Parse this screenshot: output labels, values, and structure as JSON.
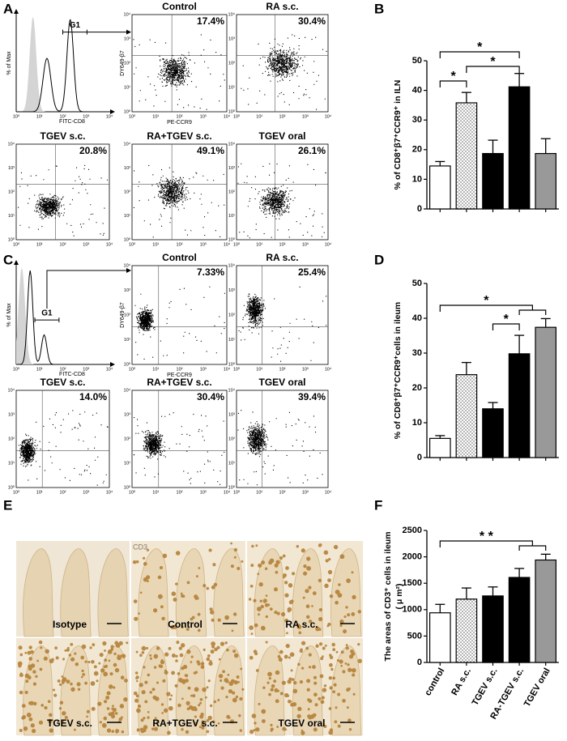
{
  "panel_labels": [
    "A",
    "B",
    "C",
    "D",
    "E",
    "F"
  ],
  "flow_panels": [
    {
      "histogram": {
        "gate": "G1",
        "ylabel": "% of Max",
        "xlabel": "FITC-CD8"
      },
      "dot_ylabel": "DY649-β7",
      "dot_xlabel": "PE-CCR9",
      "plots": [
        {
          "title": "Control",
          "percent": "17.4%"
        },
        {
          "title": "RA s.c.",
          "percent": "30.4%"
        },
        {
          "title": "TGEV s.c.",
          "percent": "20.8%"
        },
        {
          "title": "RA+TGEV s.c.",
          "percent": "49.1%"
        },
        {
          "title": "TGEV oral",
          "percent": "26.1%"
        }
      ]
    },
    {
      "histogram": {
        "gate": "G1",
        "ylabel": "% of Max",
        "xlabel": "FITC-CD8"
      },
      "dot_ylabel": "DY649-β7",
      "dot_xlabel": "PE-CCR9",
      "plots": [
        {
          "title": "Control",
          "percent": "7.33%"
        },
        {
          "title": "RA s.c.",
          "percent": "25.4%"
        },
        {
          "title": "TGEV s.c.",
          "percent": "14.0%"
        },
        {
          "title": "RA+TGEV s.c.",
          "percent": "30.4%"
        },
        {
          "title": "TGEV oral",
          "percent": "39.4%"
        }
      ]
    }
  ],
  "log_ticks": [
    "10⁰",
    "10¹",
    "10²",
    "10³",
    "10⁴"
  ],
  "micrographs": {
    "stain": "CD3",
    "labels": [
      "Isotype",
      "Control",
      "RA s.c.",
      "TGEV s.c.",
      "RA+TGEV s.c.",
      "TGEV oral"
    ]
  },
  "chart_data": [
    {
      "type": "bar",
      "ylabel": "% of CD8⁺β7⁺CCR9⁺ in ILN",
      "categories": [
        null,
        null,
        null,
        null,
        null
      ],
      "series": [
        {
          "values": [
            14.5,
            35.8,
            18.7,
            41.2,
            18.7
          ],
          "errors": [
            1.5,
            3.5,
            4.5,
            4.5,
            5
          ]
        }
      ],
      "colors": [
        "#ffffff",
        "dots",
        "#000000",
        "#000000",
        "#999999"
      ],
      "ylim": [
        0,
        50
      ],
      "yticks": [
        0,
        10,
        20,
        30,
        40,
        50
      ],
      "annotations": [
        "*",
        "*",
        "*"
      ]
    },
    {
      "type": "bar",
      "ylabel": "% of CD8⁺β7⁺CCR9⁺cells in ileum",
      "categories": [
        null,
        null,
        null,
        null,
        null
      ],
      "series": [
        {
          "values": [
            5.5,
            23.8,
            14,
            29.8,
            37.4
          ],
          "errors": [
            0.8,
            3.5,
            1.8,
            5.3,
            2.5
          ]
        }
      ],
      "colors": [
        "#ffffff",
        "dots",
        "#000000",
        "#000000",
        "#999999"
      ],
      "ylim": [
        0,
        50
      ],
      "yticks": [
        0,
        10,
        20,
        30,
        40,
        50
      ],
      "annotations": [
        "*",
        "*"
      ]
    },
    {
      "type": "bar",
      "ylabel": [
        "The areas of CD3⁺ cells in ileum",
        "( μ m²)"
      ],
      "categories": [
        "control",
        "RA s.c.",
        "TGEV s.c.",
        "RA-TGEV s.c.",
        "TGEV oral"
      ],
      "series": [
        {
          "values": [
            940,
            1200,
            1260,
            1610,
            1940
          ],
          "errors": [
            160,
            210,
            170,
            170,
            110
          ]
        }
      ],
      "colors": [
        "#ffffff",
        "dots",
        "#000000",
        "#000000",
        "#999999"
      ],
      "ylim": [
        0,
        2500
      ],
      "yticks": [
        0,
        500,
        1000,
        1500,
        2000,
        2500
      ],
      "annotations": [
        "* *"
      ]
    }
  ]
}
